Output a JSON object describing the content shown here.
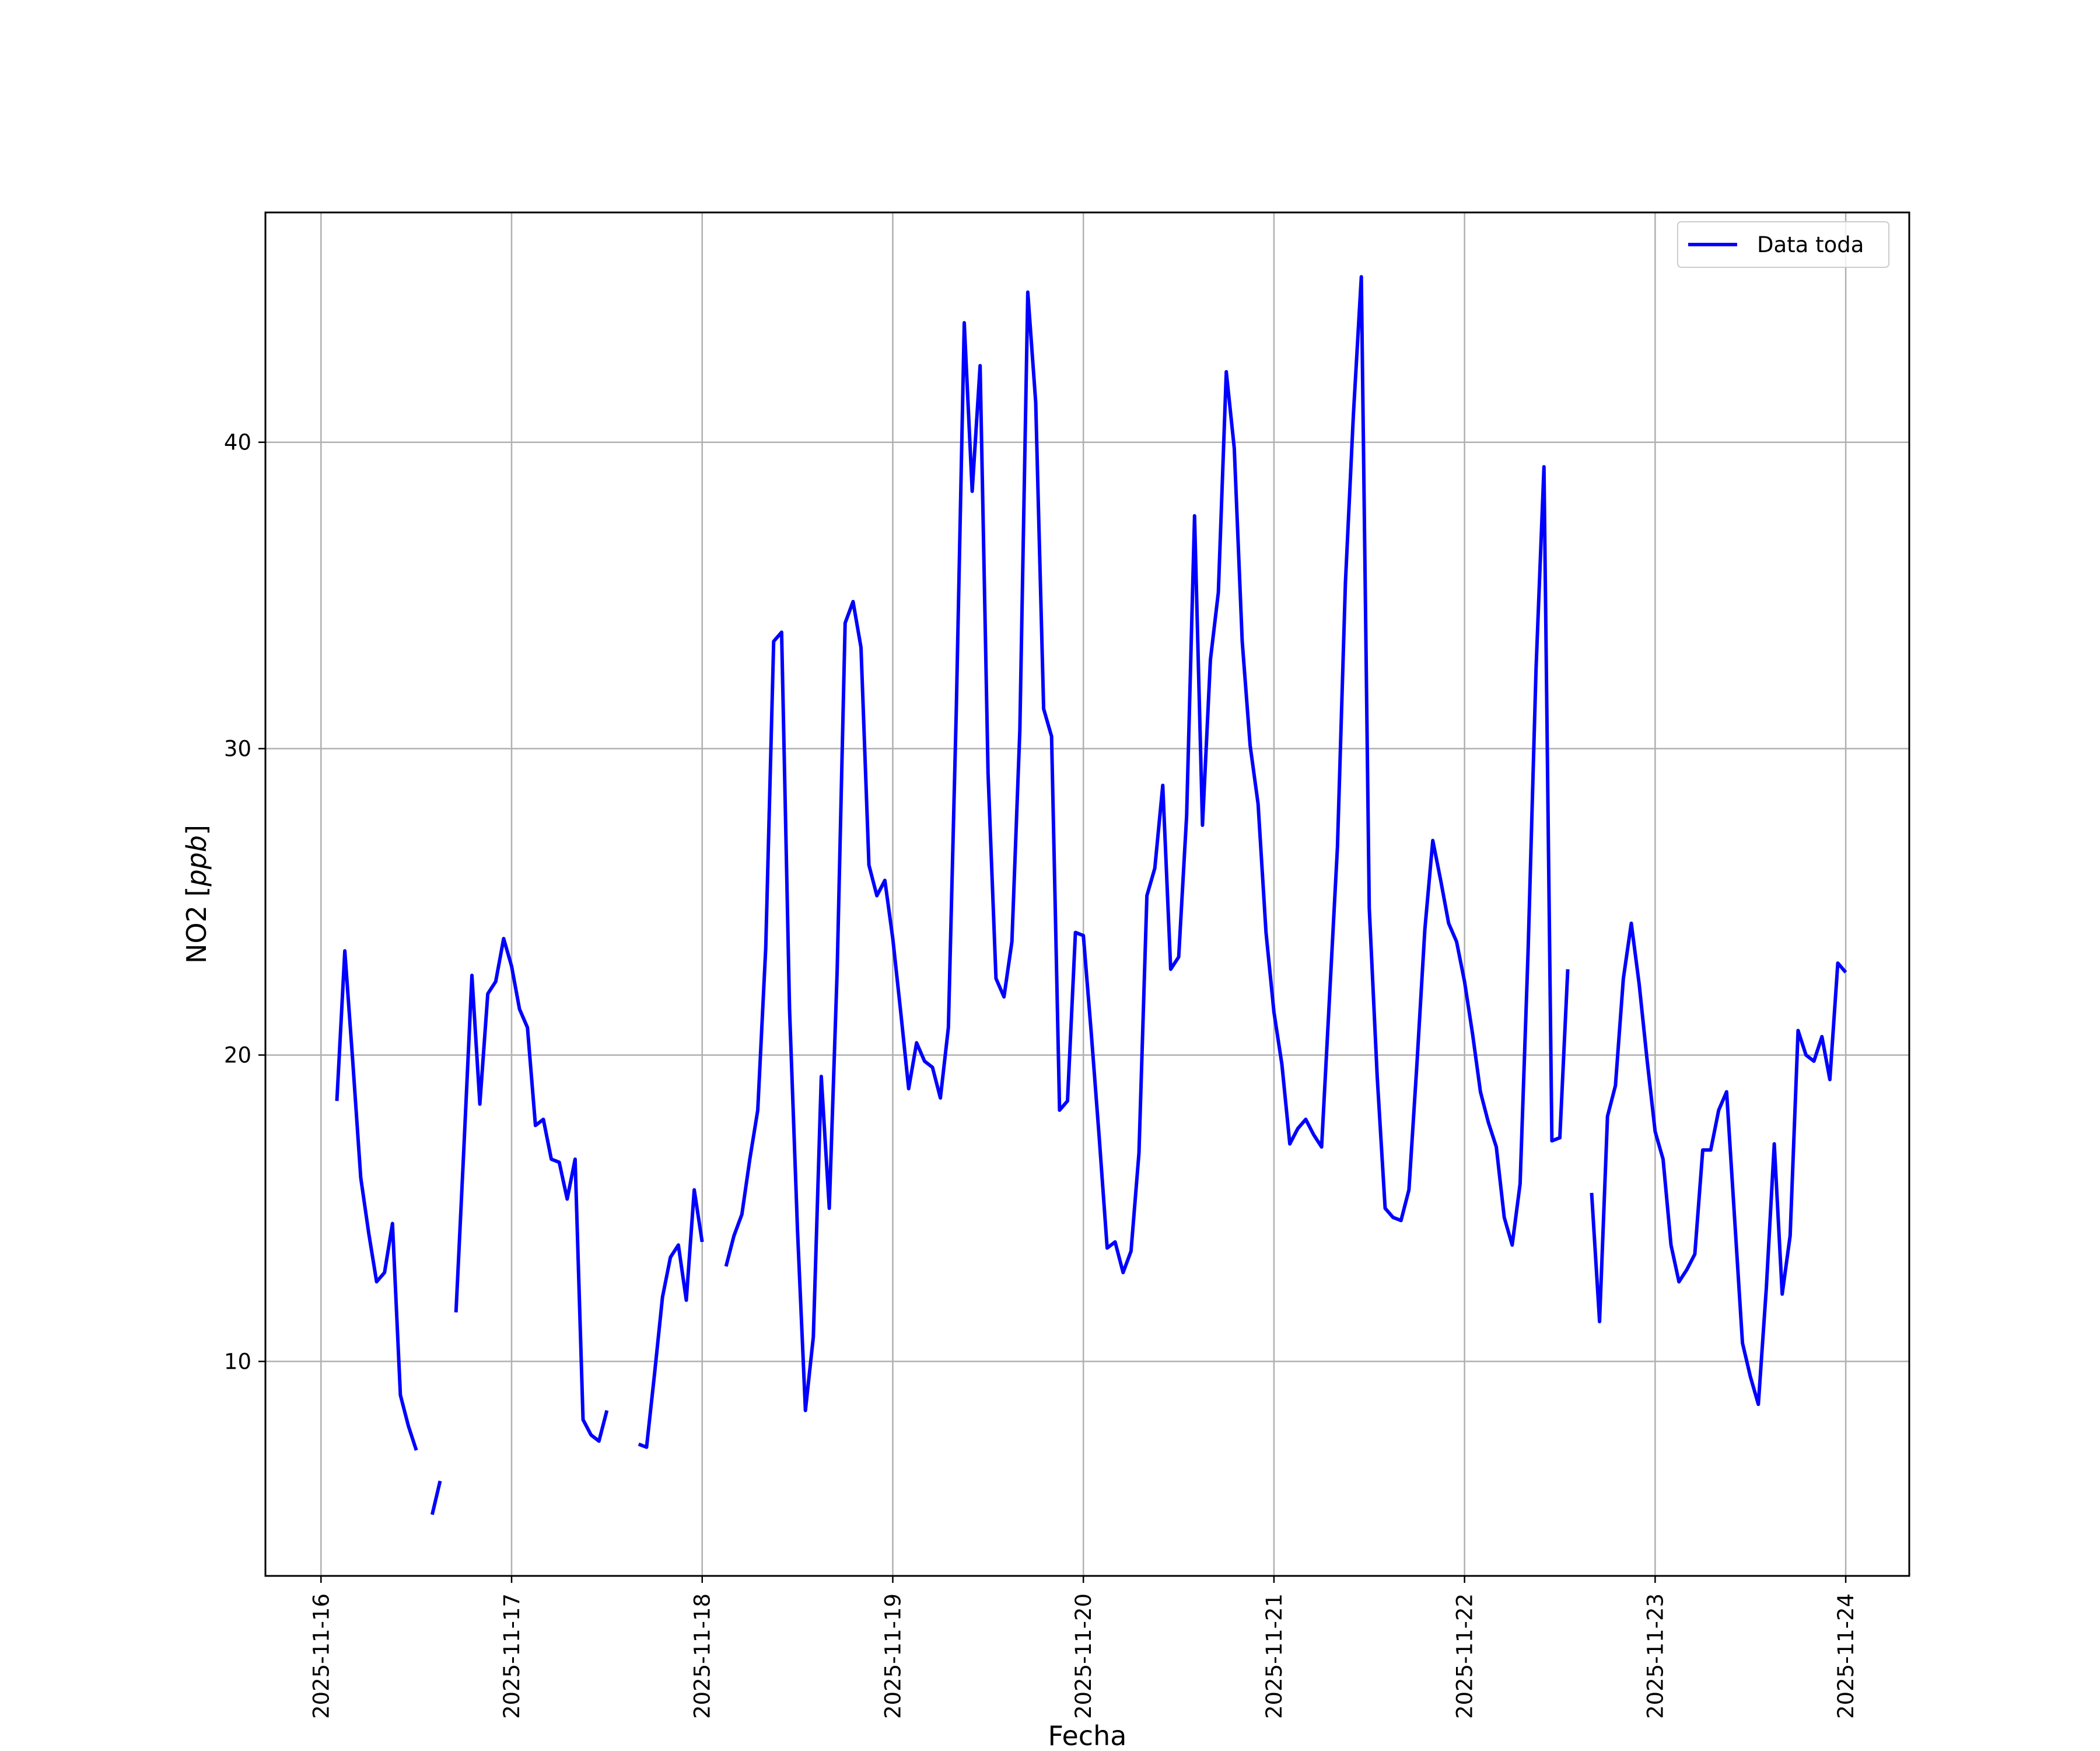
{
  "chart_data": {
    "type": "line",
    "title": "",
    "xlabel": "Fecha",
    "ylabel": "NO2 [ppb]",
    "ylabel_parts": {
      "text": "NO2 [",
      "math": "ppb",
      "close": "]"
    },
    "x_tick_labels": [
      "2025-11-16",
      "2025-11-17",
      "2025-11-18",
      "2025-11-19",
      "2025-11-20",
      "2025-11-21",
      "2025-11-22",
      "2025-11-23",
      "2025-11-24"
    ],
    "y_tick_labels": [
      "10",
      "20",
      "30",
      "40"
    ],
    "y_ticks": [
      10,
      20,
      30,
      40
    ],
    "xlim": [
      "2025-11-15T17:00",
      "2025-11-24T08:00"
    ],
    "ylim": [
      3.0,
      47.5
    ],
    "grid": true,
    "legend": {
      "position": "top-right",
      "entries": [
        "Data toda"
      ]
    },
    "colors": {
      "series": "#0000ff",
      "grid": "#b0b0b0",
      "axes": "#000000"
    },
    "series": [
      {
        "name": "Data toda",
        "x": [
          "2025-11-16T02:00",
          "2025-11-16T03:00",
          "2025-11-16T04:00",
          "2025-11-16T05:00",
          "2025-11-16T06:00",
          "2025-11-16T07:00",
          "2025-11-16T08:00",
          "2025-11-16T09:00",
          "2025-11-16T10:00",
          "2025-11-16T11:00",
          "2025-11-16T12:00",
          "2025-11-16T14:00",
          "2025-11-16T15:00",
          "2025-11-16T17:00",
          "2025-11-16T18:00",
          "2025-11-16T19:00",
          "2025-11-16T20:00",
          "2025-11-16T21:00",
          "2025-11-16T22:00",
          "2025-11-16T23:00",
          "2025-11-17T00:00",
          "2025-11-17T01:00",
          "2025-11-17T02:00",
          "2025-11-17T03:00",
          "2025-11-17T04:00",
          "2025-11-17T05:00",
          "2025-11-17T06:00",
          "2025-11-17T07:00",
          "2025-11-17T08:00",
          "2025-11-17T09:00",
          "2025-11-17T10:00",
          "2025-11-17T11:00",
          "2025-11-17T12:00",
          "2025-11-17T16:00",
          "2025-11-17T17:00",
          "2025-11-17T18:00",
          "2025-11-17T19:00",
          "2025-11-17T20:00",
          "2025-11-17T21:00",
          "2025-11-17T22:00",
          "2025-11-17T23:00",
          "2025-11-18T00:00",
          "2025-11-18T03:00",
          "2025-11-18T04:00",
          "2025-11-18T05:00",
          "2025-11-18T06:00",
          "2025-11-18T07:00",
          "2025-11-18T08:00",
          "2025-11-18T09:00",
          "2025-11-18T10:00",
          "2025-11-18T11:00",
          "2025-11-18T12:00",
          "2025-11-18T13:00",
          "2025-11-18T14:00",
          "2025-11-18T15:00",
          "2025-11-18T16:00",
          "2025-11-18T17:00",
          "2025-11-18T18:00",
          "2025-11-18T19:00",
          "2025-11-18T20:00",
          "2025-11-18T21:00",
          "2025-11-18T22:00",
          "2025-11-18T23:00",
          "2025-11-19T00:00",
          "2025-11-19T01:00",
          "2025-11-19T02:00",
          "2025-11-19T03:00",
          "2025-11-19T04:00",
          "2025-11-19T05:00",
          "2025-11-19T06:00",
          "2025-11-19T07:00",
          "2025-11-19T08:00",
          "2025-11-19T09:00",
          "2025-11-19T10:00",
          "2025-11-19T11:00",
          "2025-11-19T12:00",
          "2025-11-19T13:00",
          "2025-11-19T14:00",
          "2025-11-19T15:00",
          "2025-11-19T16:00",
          "2025-11-19T17:00",
          "2025-11-19T18:00",
          "2025-11-19T19:00",
          "2025-11-19T20:00",
          "2025-11-19T21:00",
          "2025-11-19T22:00",
          "2025-11-19T23:00",
          "2025-11-20T00:00",
          "2025-11-20T01:00",
          "2025-11-20T02:00",
          "2025-11-20T03:00",
          "2025-11-20T04:00",
          "2025-11-20T05:00",
          "2025-11-20T06:00",
          "2025-11-20T07:00",
          "2025-11-20T08:00",
          "2025-11-20T09:00",
          "2025-11-20T10:00",
          "2025-11-20T11:00",
          "2025-11-20T12:00",
          "2025-11-20T13:00",
          "2025-11-20T14:00",
          "2025-11-20T15:00",
          "2025-11-20T16:00",
          "2025-11-20T17:00",
          "2025-11-20T18:00",
          "2025-11-20T19:00",
          "2025-11-20T20:00",
          "2025-11-20T21:00",
          "2025-11-20T22:00",
          "2025-11-20T23:00",
          "2025-11-21T00:00",
          "2025-11-21T01:00",
          "2025-11-21T02:00",
          "2025-11-21T03:00",
          "2025-11-21T04:00",
          "2025-11-21T05:00",
          "2025-11-21T06:00",
          "2025-11-21T07:00",
          "2025-11-21T08:00",
          "2025-11-21T09:00",
          "2025-11-21T10:00",
          "2025-11-21T11:00",
          "2025-11-21T12:00",
          "2025-11-21T13:00",
          "2025-11-21T14:00",
          "2025-11-21T15:00",
          "2025-11-21T16:00",
          "2025-11-21T17:00",
          "2025-11-21T18:00",
          "2025-11-21T19:00",
          "2025-11-21T20:00",
          "2025-11-21T21:00",
          "2025-11-21T22:00",
          "2025-11-21T23:00",
          "2025-11-22T00:00",
          "2025-11-22T01:00",
          "2025-11-22T02:00",
          "2025-11-22T03:00",
          "2025-11-22T04:00",
          "2025-11-22T05:00",
          "2025-11-22T06:00",
          "2025-11-22T07:00",
          "2025-11-22T08:00",
          "2025-11-22T09:00",
          "2025-11-22T10:00",
          "2025-11-22T11:00",
          "2025-11-22T12:00",
          "2025-11-22T13:00",
          "2025-11-22T16:00",
          "2025-11-22T17:00",
          "2025-11-22T18:00",
          "2025-11-22T19:00",
          "2025-11-22T20:00",
          "2025-11-22T21:00",
          "2025-11-22T22:00",
          "2025-11-22T23:00",
          "2025-11-23T00:00",
          "2025-11-23T01:00",
          "2025-11-23T02:00",
          "2025-11-23T03:00",
          "2025-11-23T04:00",
          "2025-11-23T05:00",
          "2025-11-23T06:00",
          "2025-11-23T07:00",
          "2025-11-23T08:00",
          "2025-11-23T09:00",
          "2025-11-23T10:00",
          "2025-11-23T11:00",
          "2025-11-23T12:00",
          "2025-11-23T13:00",
          "2025-11-23T14:00",
          "2025-11-23T15:00",
          "2025-11-23T16:00",
          "2025-11-23T17:00",
          "2025-11-23T18:00",
          "2025-11-23T19:00",
          "2025-11-23T20:00",
          "2025-11-23T21:00",
          "2025-11-23T22:00",
          "2025-11-23T23:00",
          "2025-11-24T00:00"
        ],
        "y": [
          18.5,
          23.4,
          19.8,
          16.0,
          14.2,
          12.6,
          12.9,
          14.5,
          8.9,
          7.9,
          7.1,
          5.0,
          6.1,
          11.6,
          17.0,
          22.6,
          18.4,
          22.0,
          22.4,
          23.8,
          22.9,
          21.5,
          20.9,
          17.7,
          17.9,
          16.6,
          16.5,
          15.3,
          16.6,
          8.1,
          7.6,
          7.4,
          8.4,
          7.3,
          7.2,
          9.6,
          12.1,
          13.4,
          13.8,
          12.0,
          15.6,
          13.9,
          13.1,
          14.1,
          14.8,
          16.6,
          18.2,
          23.5,
          33.5,
          33.8,
          21.5,
          14.3,
          8.4,
          10.8,
          19.3,
          15.0,
          22.8,
          34.1,
          34.8,
          33.3,
          26.2,
          25.2,
          25.7,
          23.8,
          21.4,
          18.9,
          20.4,
          19.8,
          19.6,
          18.6,
          20.9,
          31.3,
          43.9,
          38.4,
          42.5,
          29.2,
          22.5,
          21.9,
          23.7,
          30.6,
          44.9,
          41.3,
          31.3,
          30.4,
          18.2,
          18.5,
          24.0,
          23.9,
          20.7,
          17.3,
          13.7,
          13.9,
          12.9,
          13.6,
          16.8,
          25.2,
          26.1,
          28.8,
          22.8,
          23.2,
          27.8,
          37.6,
          27.5,
          32.9,
          35.1,
          42.3,
          39.8,
          33.5,
          30.1,
          28.2,
          24.0,
          21.4,
          19.7,
          17.1,
          17.6,
          17.9,
          17.4,
          17.0,
          21.9,
          26.8,
          35.4,
          40.9,
          45.4,
          24.8,
          19.3,
          15.0,
          14.7,
          14.6,
          15.6,
          19.7,
          24.1,
          27.0,
          25.7,
          24.3,
          23.7,
          22.4,
          20.7,
          18.8,
          17.8,
          17.0,
          14.7,
          13.8,
          15.8,
          23.4,
          32.6,
          39.2,
          17.2,
          17.3,
          22.8,
          15.5,
          11.3,
          18.0,
          19.0,
          22.5,
          24.3,
          22.3,
          19.8,
          17.5,
          16.6,
          13.8,
          12.6,
          13.0,
          13.5,
          16.9,
          16.9,
          18.2,
          18.8,
          14.7,
          10.6,
          9.5,
          8.6,
          12.4,
          17.1,
          12.2,
          14.1,
          20.8,
          20.0,
          19.8,
          20.6,
          19.2,
          23.0,
          22.7
        ]
      }
    ]
  }
}
